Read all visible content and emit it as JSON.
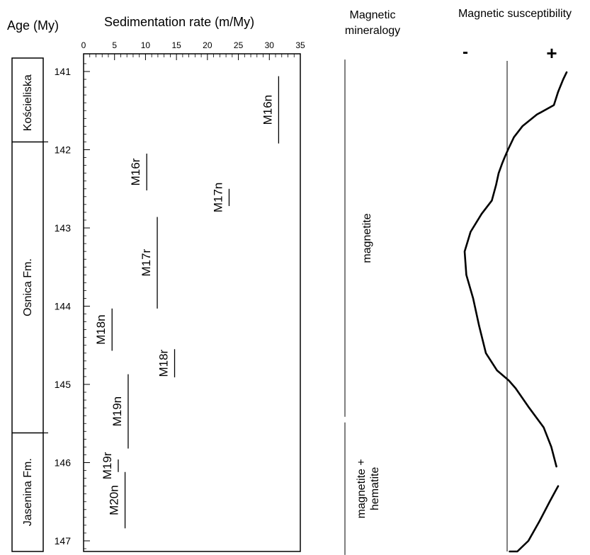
{
  "headers": {
    "age": "Age (My)",
    "sed": "Sedimentation rate (m/My)",
    "mineralogy_line1": "Magnetic",
    "mineralogy_line2": "mineralogy",
    "suscept": "Magnetic susceptibility",
    "minus": "-",
    "plus": "+"
  },
  "formations": [
    {
      "label": "Kościeliska",
      "top": 140.9,
      "bottom": 141.9
    },
    {
      "label": "Osnica Fm.",
      "top": 141.9,
      "bottom": 145.62
    },
    {
      "label": "Jasenina Fm.",
      "top": 145.62,
      "bottom": 147.3
    }
  ],
  "mineralogy": [
    {
      "line1": "magnetite",
      "line2": "",
      "top": 140.92,
      "bottom": 145.45
    },
    {
      "line1": "magnetite +",
      "line2": "hematite",
      "top": 145.45,
      "bottom": 147.18
    }
  ],
  "chart_data": {
    "type": "line",
    "xlabel": "Sedimentation rate (m/My)",
    "ylabel": "Age (My)",
    "x_ticks": [
      0,
      5,
      10,
      15,
      20,
      25,
      30,
      35
    ],
    "xlim": [
      0,
      35
    ],
    "y_ticks": [
      141,
      142,
      143,
      144,
      145,
      146,
      147
    ],
    "ylim": [
      140.9,
      147.3
    ],
    "chrons": [
      {
        "label": "M16n",
        "x": 31.5,
        "top": 141.06,
        "bottom": 141.92
      },
      {
        "label": "M16r",
        "x": 10.2,
        "top": 142.05,
        "bottom": 142.52
      },
      {
        "label": "M17n",
        "x": 23.5,
        "top": 142.5,
        "bottom": 142.72
      },
      {
        "label": "M17r",
        "x": 11.9,
        "top": 142.86,
        "bottom": 144.03
      },
      {
        "label": "M18n",
        "x": 4.6,
        "top": 144.03,
        "bottom": 144.57
      },
      {
        "label": "M18r",
        "x": 14.7,
        "top": 144.55,
        "bottom": 144.91
      },
      {
        "label": "M19n",
        "x": 7.2,
        "top": 144.87,
        "bottom": 145.82
      },
      {
        "label": "M19r",
        "x": 5.6,
        "top": 145.96,
        "bottom": 146.12
      },
      {
        "label": "M20n",
        "x": 6.7,
        "top": 146.12,
        "bottom": 146.84
      }
    ],
    "susceptibility": {
      "segments": [
        [
          [
            141.01,
            0.7
          ],
          [
            141.1,
            0.66
          ],
          [
            141.26,
            0.6
          ],
          [
            141.43,
            0.55
          ],
          [
            141.55,
            0.35
          ],
          [
            141.7,
            0.18
          ],
          [
            141.84,
            0.08
          ],
          [
            142.0,
            0.01
          ],
          [
            142.1,
            -0.03
          ],
          [
            142.18,
            -0.06
          ],
          [
            142.3,
            -0.1
          ],
          [
            142.45,
            -0.13
          ],
          [
            142.65,
            -0.18
          ],
          [
            142.82,
            -0.3
          ],
          [
            143.05,
            -0.43
          ],
          [
            143.3,
            -0.5
          ],
          [
            143.6,
            -0.48
          ],
          [
            143.9,
            -0.4
          ],
          [
            144.25,
            -0.33
          ],
          [
            144.6,
            -0.25
          ],
          [
            144.82,
            -0.12
          ],
          [
            144.95,
            0.02
          ],
          [
            145.05,
            0.1
          ],
          [
            145.3,
            0.26
          ],
          [
            145.55,
            0.43
          ],
          [
            145.8,
            0.52
          ],
          [
            146.05,
            0.58
          ]
        ],
        [
          [
            146.3,
            0.6
          ],
          [
            146.36,
            0.57
          ],
          [
            146.5,
            0.5
          ],
          [
            146.75,
            0.38
          ],
          [
            147.0,
            0.25
          ],
          [
            147.2,
            0.12
          ],
          [
            147.3,
            0.03
          ]
        ]
      ],
      "xlim": [
        -0.55,
        0.72
      ]
    }
  }
}
